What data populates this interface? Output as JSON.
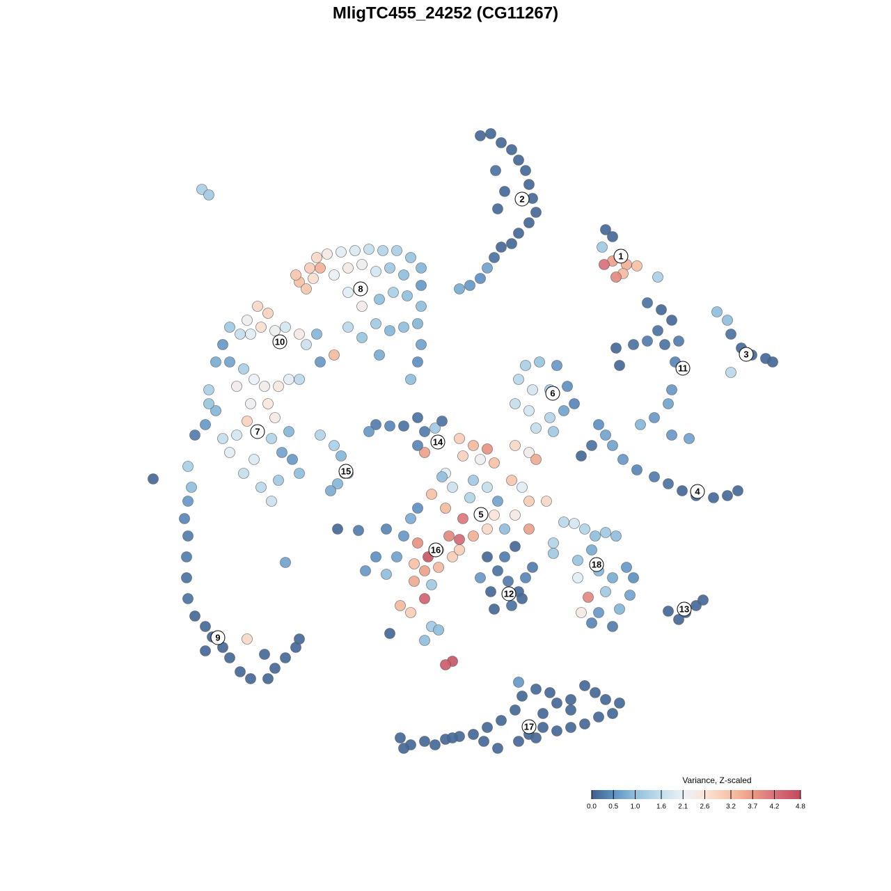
{
  "chart_data": {
    "type": "scatter",
    "title": "MligTC455_24252 (CG11267)",
    "xlim": [
      0,
      1280
    ],
    "ylim": [
      1280,
      0
    ],
    "colorbar": {
      "title": "Variance, Z-scaled",
      "ticks": [
        {
          "value": 0,
          "label": "0.0"
        },
        0.5,
        {
          "value": 1,
          "label": "1.0"
        },
        1.6,
        2.1,
        2.6,
        3.2,
        3.7,
        4.2,
        4.8
      ],
      "colors": [
        "#3f5f8c",
        "#5e90c2",
        "#8fbfdd",
        "#c4deec",
        "#eaf1f6",
        "#fbe4d8",
        "#f6c1a6",
        "#eb9a84",
        "#d8707a",
        "#c24a5c"
      ]
    },
    "series": [
      {
        "name": "1",
        "label_x": 892,
        "label_y": 368,
        "x": [
          870,
          880,
          865,
          880,
          900,
          915,
          895,
          868,
          885,
          945
        ],
        "y": [
          330,
          340,
          355,
          375,
          380,
          382,
          393,
          380,
          398,
          398
        ],
        "values": [
          0.1,
          0.1,
          1.2,
          3.6,
          3.4,
          3.2,
          3.3,
          4.2,
          3.9,
          1.3
        ]
      },
      {
        "name": "2",
        "label_x": 750,
        "label_y": 286,
        "x": [
          690,
          705,
          720,
          735,
          745,
          755,
          760,
          765,
          770,
          760,
          745,
          735,
          720,
          710,
          700,
          690,
          675,
          660,
          715,
          725,
          712
        ],
        "y": [
          195,
          192,
          205,
          215,
          230,
          245,
          265,
          285,
          305,
          320,
          335,
          350,
          355,
          370,
          385,
          400,
          410,
          415,
          300,
          275,
          245
        ],
        "values": [
          0.1,
          0.1,
          0.1,
          0.1,
          0.1,
          0.1,
          0.1,
          0.1,
          0.1,
          0.1,
          0.1,
          0.1,
          0.1,
          0.2,
          0.7,
          0.5,
          0.6,
          0.8,
          0.1,
          0.1,
          0.2
        ]
      },
      {
        "name": "3",
        "label_x": 1072,
        "label_y": 509,
        "x": [
          1030,
          1045,
          1050,
          1065,
          1080,
          1100,
          1050,
          1110
        ],
        "y": [
          448,
          460,
          480,
          500,
          510,
          515,
          535,
          520
        ],
        "values": [
          1.0,
          1.0,
          0.2,
          0.1,
          0.1,
          0.1,
          1.5,
          0.1
        ]
      },
      {
        "name": "4",
        "label_x": 1002,
        "label_y": 706,
        "x": [
          860,
          870,
          880,
          895,
          915,
          940,
          960,
          980,
          1000,
          1025,
          1045,
          1060,
          850,
          835
        ],
        "y": [
          610,
          625,
          640,
          660,
          675,
          685,
          695,
          705,
          712,
          715,
          712,
          705,
          640,
          655
        ],
        "values": [
          0.5,
          0.7,
          0.7,
          0.6,
          0.4,
          0.3,
          0.2,
          0.1,
          0.1,
          0.1,
          0.1,
          0.1,
          0.2,
          0.1
        ]
      },
      {
        "name": "5",
        "label_x": 691,
        "label_y": 739,
        "x": [
          660,
          680,
          700,
          665,
          690,
          710,
          740,
          760,
          770,
          735,
          750,
          700,
          715,
          680,
          650,
          640,
          665,
          700,
          725,
          760,
          785,
          740,
          760,
          620,
          600,
          640,
          675,
          710,
          635,
          610
        ],
        "y": [
          630,
          640,
          645,
          655,
          660,
          665,
          640,
          650,
          660,
          690,
          700,
          700,
          720,
          690,
          700,
          730,
          745,
          760,
          760,
          720,
          720,
          740,
          760,
          710,
          730,
          680,
          715,
          740,
          685,
          650
        ],
        "values": [
          3.0,
          3.3,
          3.8,
          2.9,
          2.2,
          3.2,
          2.8,
          2.3,
          3.5,
          3.1,
          2.0,
          1.6,
          0.7,
          1.2,
          1.7,
          3.3,
          4.1,
          2.8,
          1.0,
          3.0,
          2.8,
          2.4,
          3.6,
          3.2,
          0.5,
          2.0,
          1.4,
          2.6,
          1.0,
          3.6
        ]
      },
      {
        "name": "6",
        "label_x": 794,
        "label_y": 565,
        "x": [
          755,
          775,
          800,
          745,
          765,
          790,
          815,
          740,
          760,
          790,
          810,
          825,
          770,
          795
        ],
        "y": [
          525,
          520,
          525,
          545,
          560,
          560,
          555,
          580,
          590,
          600,
          590,
          580,
          615,
          620
        ],
        "values": [
          1.3,
          1.1,
          0.6,
          1.5,
          1.8,
          1.2,
          0.5,
          1.6,
          1.8,
          1.4,
          0.7,
          0.4,
          1.6,
          1.2
        ]
      },
      {
        "name": "7",
        "label_x": 370,
        "label_y": 620,
        "x": [
          300,
          310,
          295,
          280,
          300,
          310,
          340,
          355,
          360,
          385,
          395,
          340,
          320,
          390,
          405,
          420,
          430,
          400,
          375,
          390,
          365,
          350,
          415,
          330
        ],
        "y": [
          560,
          590,
          610,
          625,
          580,
          520,
          555,
          605,
          580,
          580,
          600,
          625,
          630,
          630,
          650,
          660,
          680,
          690,
          700,
          720,
          660,
          680,
          620,
          650
        ],
        "values": [
          1.3,
          0.9,
          0.6,
          0.3,
          1.1,
          0.8,
          2.3,
          2.9,
          2.2,
          2.5,
          2.4,
          1.8,
          1.6,
          1.4,
          0.7,
          0.6,
          1.0,
          1.2,
          1.5,
          1.7,
          1.9,
          1.6,
          0.9,
          2.0
        ]
      },
      {
        "name": "8",
        "label_x": 518,
        "label_y": 415,
        "x": [
          455,
          470,
          490,
          510,
          530,
          550,
          570,
          590,
          605,
          605,
          605,
          600,
          605,
          600,
          590,
          445,
          430,
          460,
          480,
          500,
          520,
          540,
          560,
          580,
          500,
          520,
          545,
          565,
          585,
          540,
          560,
          580,
          500,
          520,
          545,
          480,
          460,
          440,
          450,
          425
        ],
        "y": [
          370,
          365,
          362,
          360,
          358,
          360,
          360,
          370,
          385,
          410,
          440,
          465,
          495,
          520,
          545,
          385,
          405,
          385,
          395,
          385,
          380,
          390,
          385,
          395,
          420,
          440,
          430,
          420,
          425,
          465,
          475,
          470,
          470,
          485,
          510,
          510,
          520,
          415,
          400,
          395
        ],
        "values": [
          2.8,
          2.4,
          2.0,
          1.9,
          1.6,
          1.4,
          1.3,
          1.1,
          0.9,
          0.6,
          1.0,
          0.9,
          0.7,
          0.5,
          1.0,
          3.0,
          3.2,
          3.4,
          2.1,
          2.4,
          2.2,
          1.8,
          1.2,
          1.0,
          2.0,
          2.3,
          1.0,
          1.3,
          1.0,
          1.2,
          0.9,
          1.0,
          1.5,
          1.1,
          0.8,
          3.3,
          0.6,
          3.1,
          2.7,
          3.1
        ]
      },
      {
        "name": "9",
        "label_x": 313,
        "label_y": 916,
        "x": [
          270,
          275,
          270,
          265,
          270,
          268,
          268,
          270,
          280,
          295,
          305,
          320,
          330,
          345,
          360,
          385,
          395,
          410,
          425,
          430,
          380,
          355,
          295,
          410,
          220
        ],
        "y": [
          670,
          700,
          720,
          745,
          770,
          800,
          830,
          860,
          885,
          900,
          915,
          930,
          945,
          965,
          975,
          975,
          960,
          945,
          930,
          918,
          940,
          918,
          935,
          808,
          688
        ],
        "values": [
          1.3,
          1.0,
          0.6,
          0.4,
          0.3,
          0.3,
          0.2,
          0.2,
          0.1,
          0.1,
          0.1,
          0.1,
          0.1,
          0.1,
          0.1,
          0.1,
          0.1,
          0.1,
          0.1,
          0.1,
          0.1,
          2.8,
          0.1,
          0.7,
          0.1
        ]
      },
      {
        "name": "10",
        "label_x": 402,
        "label_y": 491,
        "x": [
          330,
          345,
          360,
          375,
          395,
          410,
          430,
          440,
          455,
          320,
          330,
          350,
          365,
          380,
          400,
          415,
          430,
          385,
          370,
          355,
          290,
          300
        ],
        "y": [
          470,
          480,
          480,
          470,
          475,
          470,
          480,
          495,
          480,
          495,
          520,
          530,
          545,
          555,
          555,
          545,
          545,
          450,
          440,
          460,
          272,
          280
        ],
        "values": [
          1.2,
          1.6,
          2.0,
          2.7,
          2.2,
          1.8,
          2.4,
          1.7,
          0.9,
          0.6,
          0.7,
          1.3,
          2.1,
          2.3,
          2.5,
          2.0,
          1.5,
          2.9,
          2.8,
          2.2,
          1.3,
          1.2
        ]
      },
      {
        "name": "11",
        "label_x": 981,
        "label_y": 529,
        "x": [
          930,
          950,
          965,
          945,
          930,
          910,
          885,
          890,
          955,
          975,
          970,
          965,
          960,
          940,
          920,
          965,
          990
        ],
        "y": [
          435,
          445,
          460,
          475,
          490,
          495,
          500,
          525,
          495,
          490,
          520,
          560,
          580,
          600,
          610,
          625,
          630
        ],
        "values": [
          0.2,
          0.1,
          0.1,
          0.2,
          0.3,
          0.2,
          0.1,
          0.1,
          0.2,
          0.3,
          0.4,
          0.6,
          0.7,
          0.6,
          0.9,
          0.6,
          0.7
        ]
      },
      {
        "name": "12",
        "label_x": 731,
        "label_y": 853,
        "x": [
          700,
          715,
          730,
          745,
          755,
          765,
          705,
          710,
          735,
          750,
          690,
          740,
          725
        ],
        "y": [
          800,
          820,
          835,
          850,
          830,
          815,
          850,
          875,
          870,
          860,
          830,
          785,
          800
        ],
        "values": [
          0.1,
          0.2,
          0.3,
          0.1,
          0.4,
          0.3,
          0.1,
          0.1,
          0.2,
          0.1,
          0.6,
          0.1,
          0.3
        ]
      },
      {
        "name": "13",
        "label_x": 983,
        "label_y": 875,
        "x": [
          960,
          985,
          1000,
          1010,
          975
        ],
        "y": [
          878,
          880,
          870,
          862,
          890
        ],
        "values": [
          0.1,
          0.1,
          0.1,
          0.1,
          0.1
        ]
      },
      {
        "name": "14",
        "label_x": 629,
        "label_y": 635,
        "x": [
          540,
          560,
          580,
          600,
          610,
          625,
          635,
          600,
          530
        ],
        "y": [
          610,
          612,
          612,
          600,
          620,
          615,
          605,
          640,
          620
        ],
        "values": [
          0.3,
          0.4,
          0.2,
          0.2,
          0.3,
          1.2,
          0.2,
          0.4,
          0.6
        ]
      },
      {
        "name": "15",
        "label_x": 497,
        "label_y": 677,
        "x": [
          460,
          480,
          490,
          495,
          485,
          475,
          485,
          515,
          500
        ],
        "y": [
          625,
          640,
          655,
          680,
          695,
          705,
          760,
          762,
          680
        ],
        "values": [
          1.4,
          1.3,
          0.9,
          0.6,
          0.9,
          0.8,
          0.1,
          0.3,
          0.6
        ]
      },
      {
        "name": "16",
        "label_x": 626,
        "label_y": 790,
        "x": [
          600,
          615,
          630,
          645,
          660,
          680,
          595,
          610,
          630,
          650,
          580,
          570,
          555,
          540,
          525,
          555,
          590,
          575,
          590,
          610,
          620,
          650,
          640,
          620,
          610,
          560,
          630,
          595,
          660
        ],
        "y": [
          780,
          800,
          790,
          770,
          775,
          770,
          810,
          820,
          815,
          800,
          770,
          800,
          760,
          800,
          820,
          825,
          745,
          870,
          880,
          860,
          840,
          950,
          955,
          900,
          920,
          910,
          905,
          835,
          790
        ],
        "values": [
          3.8,
          4.6,
          3.6,
          3.9,
          4.3,
          3.4,
          3.2,
          3.6,
          3.3,
          3.0,
          0.6,
          0.7,
          0.4,
          0.5,
          0.6,
          1.0,
          0.8,
          3.3,
          3.0,
          4.4,
          1.2,
          4.6,
          4.5,
          1.2,
          1.0,
          0.1,
          1.0,
          3.5,
          3.0
        ]
      },
      {
        "name": "17",
        "label_x": 760,
        "label_y": 1044,
        "x": [
          575,
          590,
          610,
          625,
          640,
          660,
          680,
          695,
          715,
          700,
          720,
          740,
          750,
          770,
          790,
          800,
          820,
          840,
          855,
          870,
          890,
          880,
          860,
          840,
          820,
          800,
          780,
          760,
          745,
          745,
          770,
          820,
          780,
          650,
          580
        ],
        "y": [
          1060,
          1070,
          1065,
          1070,
          1062,
          1058,
          1055,
          1065,
          1075,
          1045,
          1035,
          1020,
          1000,
          990,
          995,
          1010,
          1005,
          985,
          995,
          1005,
          1010,
          1025,
          1030,
          1040,
          1045,
          1050,
          1045,
          1055,
          980,
          1065,
          1060,
          1020,
          1025,
          1060,
          1075
        ],
        "values": [
          0.1,
          0.1,
          0.1,
          0.1,
          0.1,
          0.1,
          0.1,
          0.1,
          0.1,
          0.1,
          0.1,
          0.1,
          0.1,
          0.1,
          0.1,
          0.1,
          0.1,
          0.1,
          0.1,
          0.1,
          0.1,
          0.1,
          0.1,
          0.1,
          0.1,
          0.1,
          0.1,
          0.1,
          0.6,
          0.1,
          0.1,
          0.1,
          0.1,
          0.1,
          0.1
        ]
      },
      {
        "name": "18",
        "label_x": 857,
        "label_y": 811,
        "x": [
          810,
          825,
          840,
          855,
          870,
          885,
          850,
          830,
          860,
          880,
          900,
          910,
          905,
          890,
          860,
          845,
          835,
          850,
          880,
          795,
          795,
          830,
          870
        ],
        "y": [
          750,
          752,
          760,
          770,
          765,
          770,
          790,
          805,
          820,
          830,
          815,
          830,
          855,
          875,
          880,
          858,
          880,
          895,
          900,
          780,
          795,
          830,
          850
        ],
        "values": [
          1.5,
          1.8,
          1.4,
          1.0,
          1.2,
          1.0,
          0.8,
          1.1,
          0.9,
          0.8,
          0.6,
          0.5,
          0.7,
          0.9,
          0.6,
          3.9,
          2.4,
          0.4,
          0.3,
          1.4,
          1.2,
          2.0,
          1.2
        ]
      }
    ]
  }
}
